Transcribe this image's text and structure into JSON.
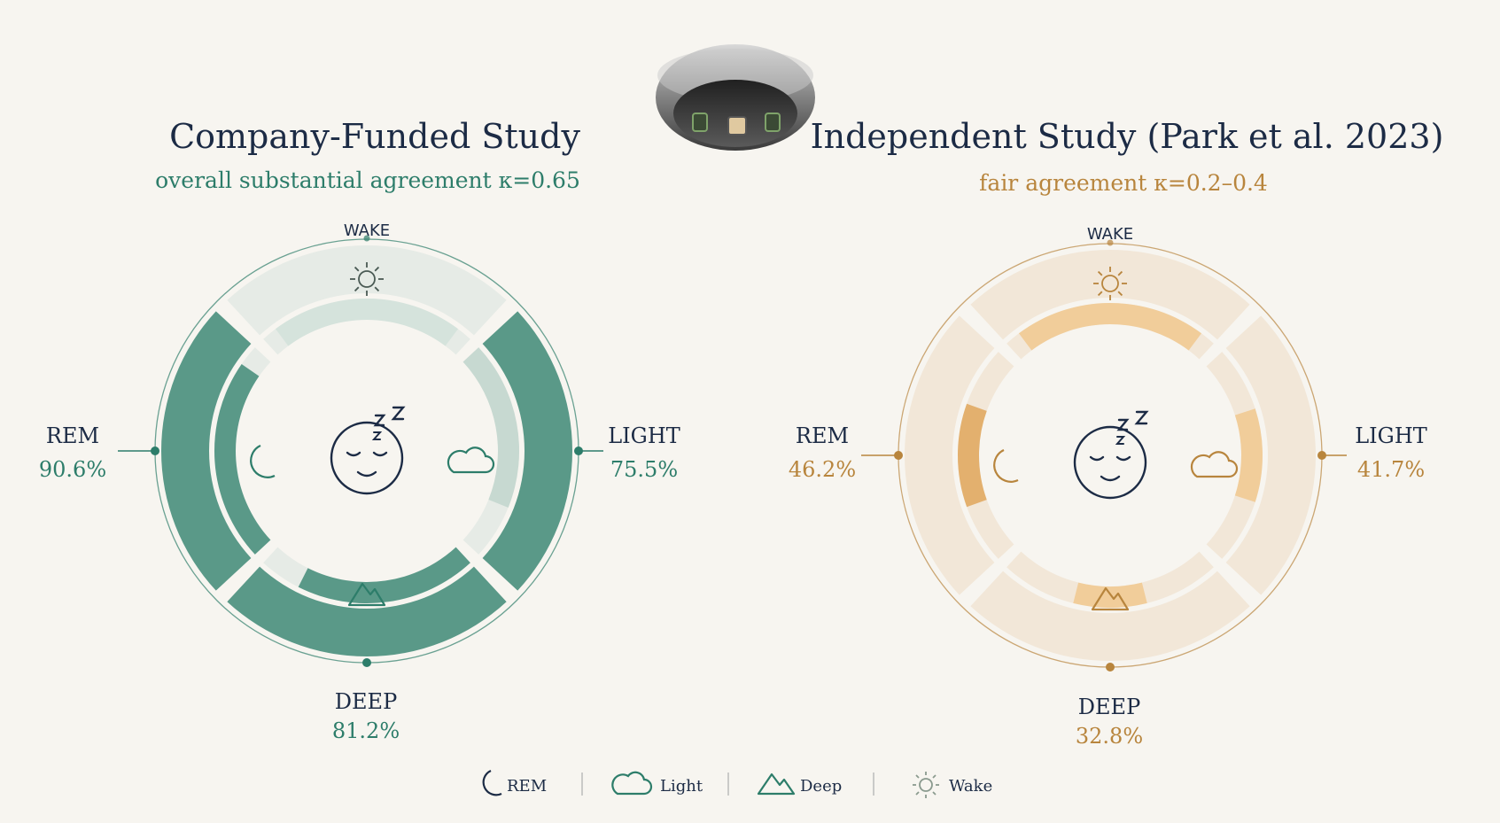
{
  "chart_data": [
    {
      "type": "radial-bar",
      "title": "Company-Funded Study",
      "subtitle": "overall substantial agreement κ=0.65",
      "categories": [
        "WAKE",
        "LIGHT",
        "DEEP",
        "REM"
      ],
      "values": [
        null,
        75.5,
        81.2,
        90.6
      ],
      "value_labels": [
        "",
        "75.5%",
        "81.2%",
        "90.6%"
      ],
      "unit": "%",
      "ylim": [
        0,
        100
      ],
      "accent": "#2d7d6a",
      "fill": "#5a9988",
      "light_fill": "#c7d9d1",
      "track": "#e6ebe6"
    },
    {
      "type": "radial-bar",
      "title": "Independent Study (Park et al. 2023)",
      "subtitle": "fair agreement κ=0.2–0.4",
      "categories": [
        "WAKE",
        "LIGHT",
        "DEEP",
        "REM"
      ],
      "values": [
        null,
        41.7,
        32.8,
        46.2
      ],
      "value_labels": [
        "",
        "41.7%",
        "32.8%",
        "46.2%"
      ],
      "unit": "%",
      "ylim": [
        0,
        100
      ],
      "accent": "#b8853d",
      "fill": "#e3b06e",
      "light_fill": "#f1cd9a",
      "track": "#f2e7d8"
    }
  ],
  "legend": {
    "placement": "bottom",
    "items": [
      {
        "icon": "moon-icon",
        "label": "REM"
      },
      {
        "icon": "cloud-icon",
        "label": "Light"
      },
      {
        "icon": "mountain-icon",
        "label": "Deep"
      },
      {
        "icon": "sun-icon",
        "label": "Wake"
      }
    ]
  },
  "illustration": "smart-ring-icon"
}
